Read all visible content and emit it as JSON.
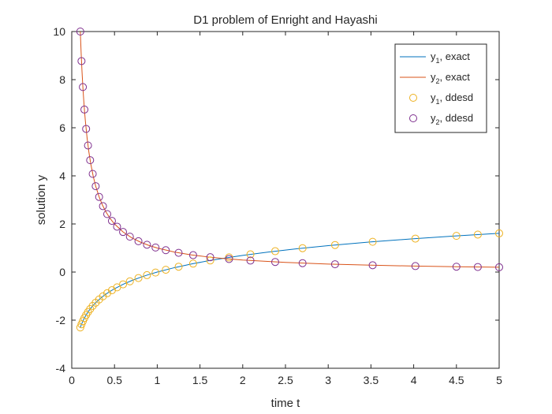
{
  "chart_data": {
    "type": "line",
    "title": "D1 problem of Enright and Hayashi",
    "xlabel": "time t",
    "ylabel": "solution y",
    "xlim": [
      0,
      5
    ],
    "ylim": [
      -4,
      10
    ],
    "xticks": [
      0,
      0.5,
      1,
      1.5,
      2,
      2.5,
      3,
      3.5,
      4,
      4.5,
      5
    ],
    "xtick_labels": [
      "0",
      "0.5",
      "1",
      "1.5",
      "2",
      "2.5",
      "3",
      "3.5",
      "4",
      "4.5",
      "5"
    ],
    "yticks": [
      -4,
      -2,
      0,
      2,
      4,
      6,
      8,
      10
    ],
    "ytick_labels": [
      "-4",
      "-2",
      "0",
      "2",
      "4",
      "6",
      "8",
      "10"
    ],
    "grid": false,
    "legend_position": "top-right",
    "colors": {
      "y1_exact": "#0072BD",
      "y2_exact": "#D95319",
      "y1_ddesd": "#EDB120",
      "y2_ddesd": "#7E2F8E",
      "axis": "#262626"
    },
    "series": [
      {
        "name": "y1, exact",
        "label_main": "y",
        "label_sub": "1",
        "label_rest": ", exact",
        "kind": "line",
        "color": "#0072BD",
        "x": [
          0.1,
          0.12,
          0.14,
          0.16,
          0.18,
          0.2,
          0.23,
          0.26,
          0.3,
          0.35,
          0.4,
          0.45,
          0.5,
          0.6,
          0.7,
          0.8,
          0.9,
          1.0,
          1.2,
          1.4,
          1.6,
          1.8,
          2.0,
          2.3,
          2.6,
          3.0,
          3.5,
          4.0,
          4.5,
          5.0
        ],
        "y": [
          -2.303,
          -2.12,
          -1.966,
          -1.833,
          -1.715,
          -1.609,
          -1.47,
          -1.347,
          -1.204,
          -1.05,
          -0.916,
          -0.799,
          -0.693,
          -0.511,
          -0.357,
          -0.223,
          -0.105,
          0.0,
          0.182,
          0.336,
          0.47,
          0.588,
          0.693,
          0.833,
          0.956,
          1.099,
          1.253,
          1.386,
          1.504,
          1.609
        ]
      },
      {
        "name": "y2, exact",
        "label_main": "y",
        "label_sub": "2",
        "label_rest": ", exact",
        "kind": "line",
        "color": "#D95319",
        "x": [
          0.1,
          0.11,
          0.12,
          0.13,
          0.14,
          0.15,
          0.16,
          0.18,
          0.2,
          0.22,
          0.25,
          0.28,
          0.32,
          0.36,
          0.4,
          0.45,
          0.5,
          0.6,
          0.7,
          0.8,
          0.9,
          1.0,
          1.2,
          1.4,
          1.6,
          1.8,
          2.0,
          2.5,
          3.0,
          3.5,
          4.0,
          4.5,
          5.0
        ],
        "y": [
          10.0,
          9.091,
          8.333,
          7.692,
          7.143,
          6.667,
          6.25,
          5.556,
          5.0,
          4.545,
          4.0,
          3.571,
          3.125,
          2.778,
          2.5,
          2.222,
          2.0,
          1.667,
          1.429,
          1.25,
          1.111,
          1.0,
          0.833,
          0.714,
          0.625,
          0.556,
          0.5,
          0.4,
          0.333,
          0.286,
          0.25,
          0.222,
          0.2
        ]
      },
      {
        "name": "y1, ddesd",
        "label_main": "y",
        "label_sub": "1",
        "label_rest": ", ddesd",
        "kind": "marker",
        "color": "#EDB120",
        "x": [
          0.1,
          0.114,
          0.13,
          0.148,
          0.168,
          0.19,
          0.215,
          0.245,
          0.28,
          0.32,
          0.365,
          0.415,
          0.47,
          0.53,
          0.6,
          0.68,
          0.78,
          0.88,
          0.98,
          1.1,
          1.25,
          1.42,
          1.62,
          1.84,
          2.09,
          2.38,
          2.7,
          3.08,
          3.52,
          4.02,
          4.5,
          4.75,
          5.0
        ],
        "y": [
          -2.303,
          -2.172,
          -2.04,
          -1.911,
          -1.784,
          -1.661,
          -1.537,
          -1.406,
          -1.273,
          -1.139,
          -1.008,
          -0.879,
          -0.755,
          -0.635,
          -0.511,
          -0.386,
          -0.248,
          -0.128,
          -0.02,
          0.095,
          0.223,
          0.351,
          0.482,
          0.61,
          0.737,
          0.867,
          0.993,
          1.125,
          1.258,
          1.391,
          1.504,
          1.558,
          1.609
        ]
      },
      {
        "name": "y2, ddesd",
        "label_main": "y",
        "label_sub": "2",
        "label_rest": ", ddesd",
        "kind": "marker",
        "color": "#7E2F8E",
        "x": [
          0.1,
          0.114,
          0.13,
          0.148,
          0.168,
          0.19,
          0.215,
          0.245,
          0.28,
          0.32,
          0.365,
          0.415,
          0.47,
          0.53,
          0.6,
          0.68,
          0.78,
          0.88,
          0.98,
          1.1,
          1.25,
          1.42,
          1.62,
          1.84,
          2.09,
          2.38,
          2.7,
          3.08,
          3.52,
          4.02,
          4.5,
          4.75,
          5.0
        ],
        "y": [
          10.0,
          8.772,
          7.692,
          6.757,
          5.952,
          5.263,
          4.651,
          4.082,
          3.571,
          3.125,
          2.74,
          2.41,
          2.128,
          1.887,
          1.667,
          1.471,
          1.282,
          1.136,
          1.02,
          0.909,
          0.8,
          0.704,
          0.617,
          0.543,
          0.478,
          0.42,
          0.37,
          0.325,
          0.284,
          0.249,
          0.222,
          0.211,
          0.2
        ]
      }
    ]
  }
}
